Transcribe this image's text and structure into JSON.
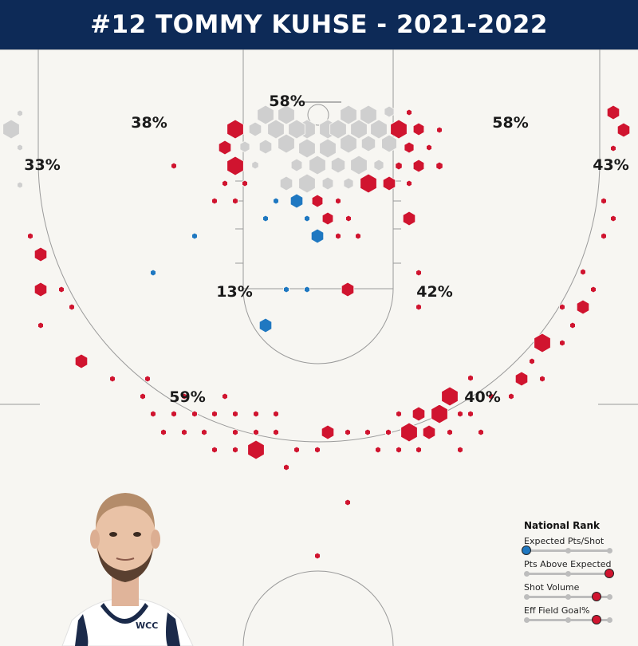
{
  "title": "#12 TOMMY KUHSE - 2021-2022",
  "colors": {
    "header": "#0d2a57",
    "above": "#d0142f",
    "below": "#1f78c1",
    "neutral": "#cfcfcf",
    "court_line": "#9a9a9a",
    "background": "#f7f6f2"
  },
  "chart_data": {
    "type": "hexbin-shot-chart",
    "zones": [
      {
        "name": "rim",
        "label": "58%"
      },
      {
        "name": "left-mid",
        "label": "38%"
      },
      {
        "name": "right-mid",
        "label": "58%"
      },
      {
        "name": "left-corner-3",
        "label": "33%"
      },
      {
        "name": "right-corner-3",
        "label": "43%"
      },
      {
        "name": "paint-mid",
        "label": "13%"
      },
      {
        "name": "right-elbow",
        "label": "42%"
      },
      {
        "name": "left-wing-3",
        "label": "59%"
      },
      {
        "name": "right-wing-3",
        "label": "40%"
      }
    ]
  },
  "legend": {
    "title": "National Rank",
    "items": [
      {
        "label": "Expected Pts/Shot",
        "value": 0.0,
        "color": "#1f78c1"
      },
      {
        "label": "Pts Above Expected",
        "value": 1.0,
        "color": "#d0142f"
      },
      {
        "label": "Shot Volume",
        "value": 0.85,
        "color": "#d0142f"
      },
      {
        "label": "Eff Field Goal%",
        "value": 0.85,
        "color": "#d0142f"
      }
    ]
  },
  "photo": {
    "jersey_text": "WCC"
  }
}
